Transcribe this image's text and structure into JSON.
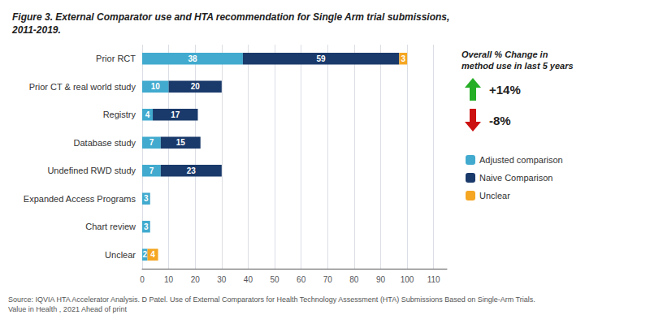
{
  "chart_data": {
    "type": "bar",
    "orientation": "horizontal",
    "stacked": true,
    "data_labels": true,
    "title": "Figure 3. External Comparator use and HTA recommendation for Single Arm trial submissions,\n2011-2019.",
    "categories": [
      "Prior RCT",
      "Prior CT & real world study",
      "Registry",
      "Database study",
      "Undefined RWD study",
      "Expanded Access Programs",
      "Chart review",
      "Unclear"
    ],
    "series": [
      {
        "name": "Adjusted comparison",
        "color": "#41AACE",
        "values": [
          38,
          10,
          4,
          7,
          7,
          3,
          3,
          2
        ]
      },
      {
        "name": "Naive Comparison",
        "color": "#1A3A6B",
        "values": [
          59,
          20,
          17,
          15,
          23,
          0,
          0,
          0
        ]
      },
      {
        "name": "Unclear",
        "color": "#F5A623",
        "values": [
          3,
          0,
          0,
          0,
          0,
          0,
          0,
          4
        ]
      }
    ],
    "xlim": [
      0,
      115
    ],
    "xticks": [
      0,
      10,
      20,
      30,
      40,
      50,
      60,
      70,
      80,
      90,
      100,
      110
    ],
    "grid": true,
    "legend": "right",
    "annotations": [
      {
        "text": "Overall % Change in\nmethod use in last 5 years"
      },
      {
        "text": "+14%",
        "color": "#27AE27",
        "marker": "arrow_up"
      },
      {
        "text": "-8%",
        "color": "#CC1111",
        "marker": "arrow_down"
      }
    ],
    "source": "Source: IQVIA HTA Accelerator Analysis. D Patel. Use of External Comparators for Health Technology Assessment (HTA) Submissions Based on Single-Arm Trials.\nValue in Health , 2021 Ahead of print"
  }
}
